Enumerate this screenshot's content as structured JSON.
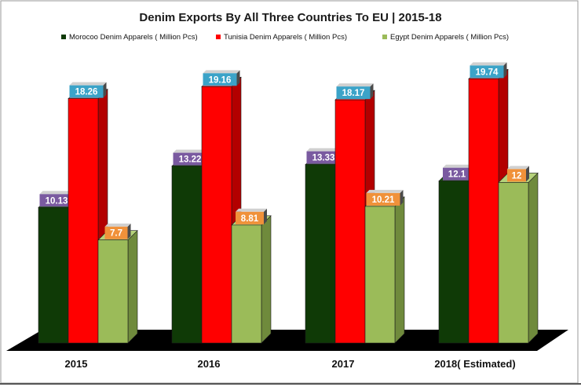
{
  "chart_data": {
    "type": "bar",
    "title": "Denim Exports By All Three Countries  To EU | 2015-18",
    "categories": [
      "2015",
      "2016",
      "2017",
      "2018( Estimated)"
    ],
    "series": [
      {
        "name": "Morocoo  Denim Apparels ( Million Pcs)",
        "values": [
          10.13,
          13.22,
          13.33,
          12.1
        ],
        "value_labels": [
          "10.13",
          "13.22",
          "13.33",
          "12.1"
        ],
        "color": "#0f3a06",
        "side_color": "#0a2804",
        "top_color": "#1d5a0e",
        "label_color": "#7a5aa0"
      },
      {
        "name": "Tunisia  Denim Apparels ( Million Pcs)",
        "values": [
          18.26,
          19.16,
          18.17,
          19.74
        ],
        "value_labels": [
          "18.26",
          "19.16",
          "18.17",
          "19.74"
        ],
        "color": "#ff0000",
        "side_color": "#b30000",
        "top_color": "#ff4040",
        "label_color": "#3ba3c8"
      },
      {
        "name": "Egypt  Denim Apparels ( Million Pcs)",
        "values": [
          7.7,
          8.81,
          10.21,
          12
        ],
        "value_labels": [
          "7.7",
          "8.81",
          "10.21",
          "12"
        ],
        "color": "#9bbb59",
        "side_color": "#6f8a3c",
        "top_color": "#b5d27a",
        "label_color": "#f0913a"
      }
    ],
    "ylim": [
      0,
      20
    ],
    "xlabel": "",
    "ylabel": ""
  }
}
